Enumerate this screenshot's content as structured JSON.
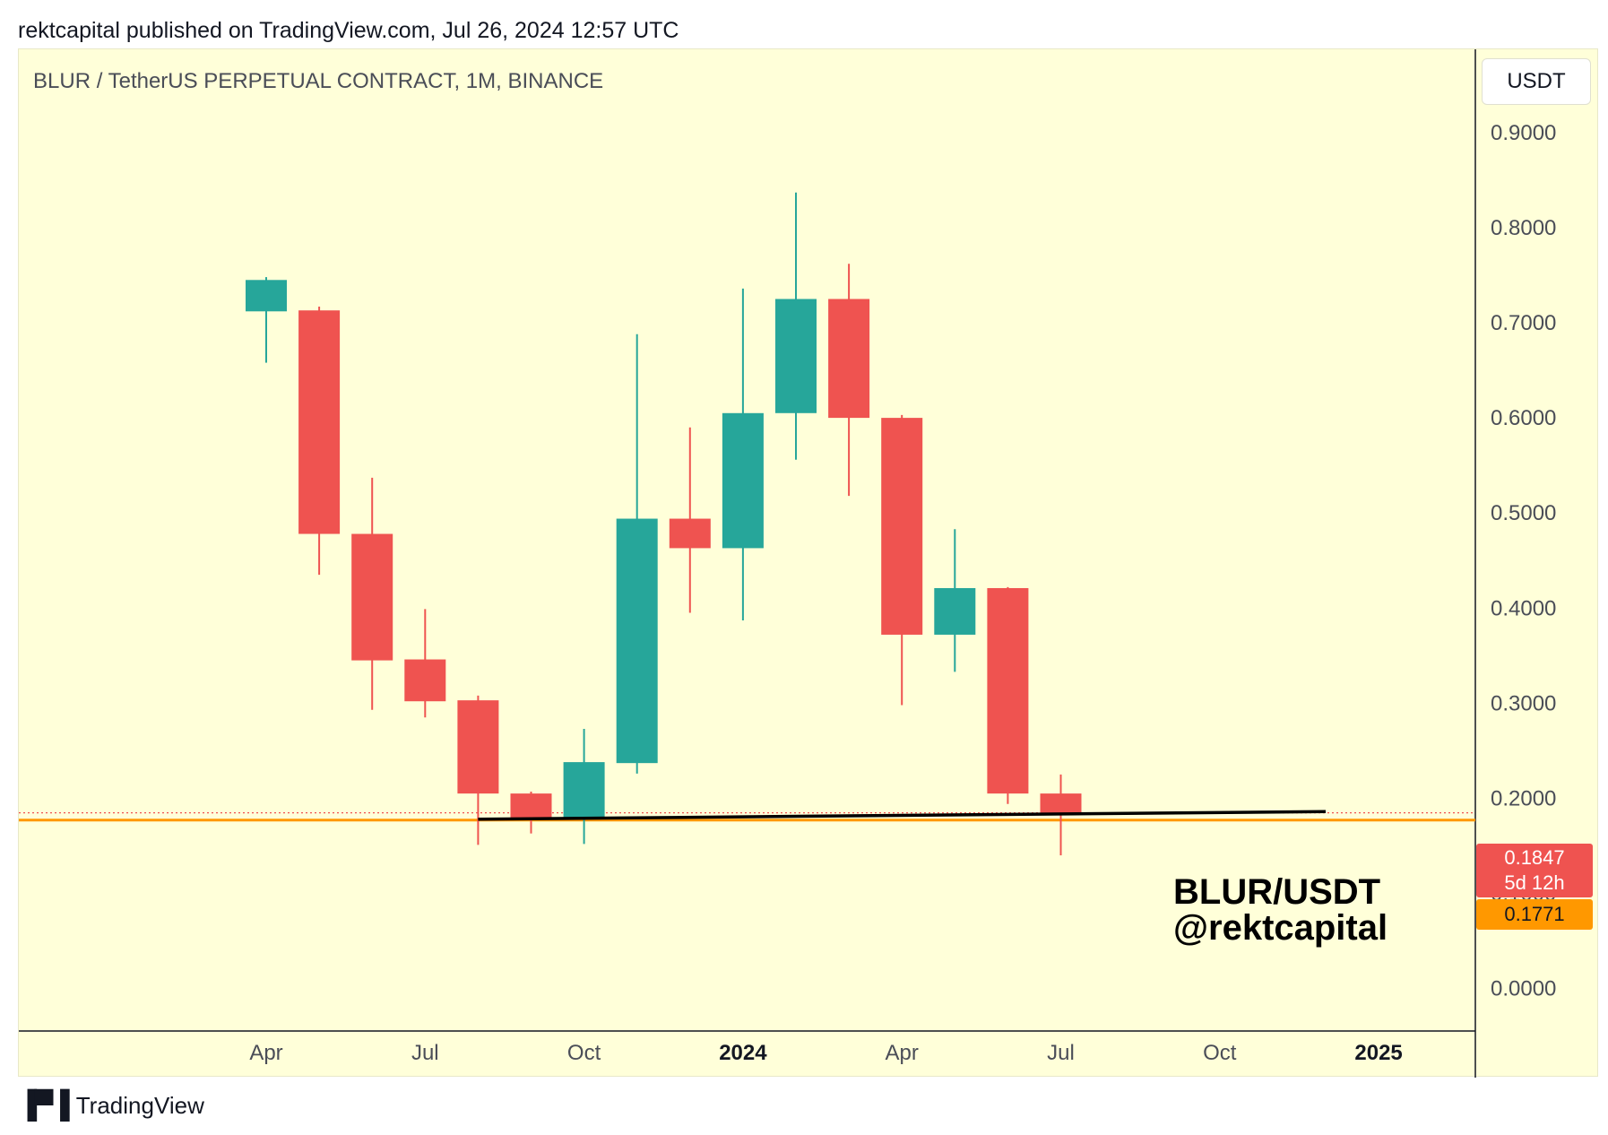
{
  "header": {
    "publish_line": "rektcapital published on TradingView.com, Jul 26, 2024 12:57 UTC"
  },
  "chart": {
    "symbol_title": "BLUR / TetherUS PERPETUAL CONTRACT, 1M, BINANCE",
    "currency_button": "USDT",
    "watermark_line1": "BLUR/USDT",
    "watermark_line2": "@rektcapital",
    "last_price_label": "0.1847",
    "countdown_label": "5d 12h",
    "level_label": "0.1771",
    "colors": {
      "up": "#26a69a",
      "down": "#ef5350",
      "level": "#ff9800",
      "background": "#ffffd9"
    }
  },
  "footer": {
    "logo_icon": "tradingview-logo-icon",
    "brand": "TradingView"
  },
  "chart_data": {
    "type": "candlestick",
    "title": "BLUR / TetherUS PERPETUAL CONTRACT, 1M, BINANCE",
    "xlabel": "",
    "ylabel": "",
    "ylim": [
      -0.04,
      0.98
    ],
    "y_ticks": [
      "0.9000",
      "0.8000",
      "0.7000",
      "0.6000",
      "0.5000",
      "0.4000",
      "0.3000",
      "0.2000",
      "0.1000",
      "0.0000"
    ],
    "x_ticks": [
      {
        "label": "Apr",
        "month": "2023-04",
        "bold": false
      },
      {
        "label": "Jul",
        "month": "2023-07",
        "bold": false
      },
      {
        "label": "Oct",
        "month": "2023-10",
        "bold": false
      },
      {
        "label": "2024",
        "month": "2024-01",
        "bold": true
      },
      {
        "label": "Apr",
        "month": "2024-04",
        "bold": false
      },
      {
        "label": "Jul",
        "month": "2024-07",
        "bold": false
      },
      {
        "label": "Oct",
        "month": "2024-10",
        "bold": false
      },
      {
        "label": "2025",
        "month": "2025-01",
        "bold": true
      }
    ],
    "candles": [
      {
        "month": "2023-04",
        "open": 0.712,
        "high": 0.748,
        "low": 0.658,
        "close": 0.745
      },
      {
        "month": "2023-05",
        "open": 0.713,
        "high": 0.717,
        "low": 0.435,
        "close": 0.478
      },
      {
        "month": "2023-06",
        "open": 0.478,
        "high": 0.537,
        "low": 0.293,
        "close": 0.345
      },
      {
        "month": "2023-07",
        "open": 0.346,
        "high": 0.399,
        "low": 0.285,
        "close": 0.302
      },
      {
        "month": "2023-08",
        "open": 0.303,
        "high": 0.308,
        "low": 0.151,
        "close": 0.205
      },
      {
        "month": "2023-09",
        "open": 0.205,
        "high": 0.207,
        "low": 0.163,
        "close": 0.179
      },
      {
        "month": "2023-10",
        "open": 0.18,
        "high": 0.273,
        "low": 0.152,
        "close": 0.238
      },
      {
        "month": "2023-11",
        "open": 0.237,
        "high": 0.688,
        "low": 0.226,
        "close": 0.494
      },
      {
        "month": "2023-12",
        "open": 0.494,
        "high": 0.59,
        "low": 0.395,
        "close": 0.463
      },
      {
        "month": "2024-01",
        "open": 0.463,
        "high": 0.736,
        "low": 0.387,
        "close": 0.605
      },
      {
        "month": "2024-02",
        "open": 0.605,
        "high": 0.837,
        "low": 0.556,
        "close": 0.725
      },
      {
        "month": "2024-03",
        "open": 0.725,
        "high": 0.762,
        "low": 0.518,
        "close": 0.6
      },
      {
        "month": "2024-04",
        "open": 0.6,
        "high": 0.603,
        "low": 0.298,
        "close": 0.372
      },
      {
        "month": "2024-05",
        "open": 0.372,
        "high": 0.483,
        "low": 0.333,
        "close": 0.421
      },
      {
        "month": "2024-06",
        "open": 0.421,
        "high": 0.422,
        "low": 0.194,
        "close": 0.205
      },
      {
        "month": "2024-07",
        "open": 0.205,
        "high": 0.225,
        "low": 0.14,
        "close": 0.1847
      }
    ],
    "support_level": 0.1771,
    "last_price": 0.1847,
    "trendline": {
      "from": {
        "month": "2023-08",
        "value": 0.178
      },
      "to": {
        "month": "2024-12",
        "value": 0.186
      }
    },
    "grid": false,
    "legend": "none"
  }
}
